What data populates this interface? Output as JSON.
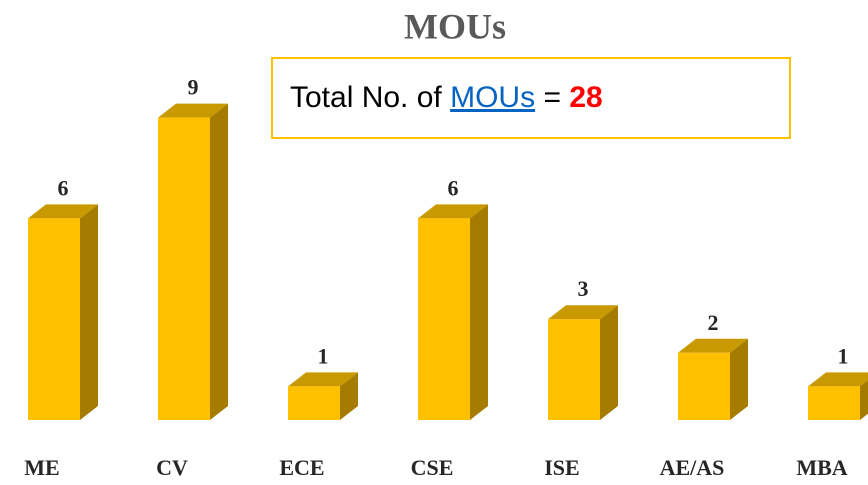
{
  "chart_data": {
    "type": "bar3d",
    "title": "MOUs",
    "categories": [
      "ME",
      "CV",
      "ECE",
      "CSE",
      "ISE",
      "AE/AS",
      "MBA"
    ],
    "values": [
      6,
      9,
      1,
      6,
      3,
      2,
      1
    ],
    "color": "#ffc000",
    "annotation": {
      "prefix": "Total No. of",
      "link": "MOUs",
      "operator": "=",
      "value": 28
    }
  }
}
